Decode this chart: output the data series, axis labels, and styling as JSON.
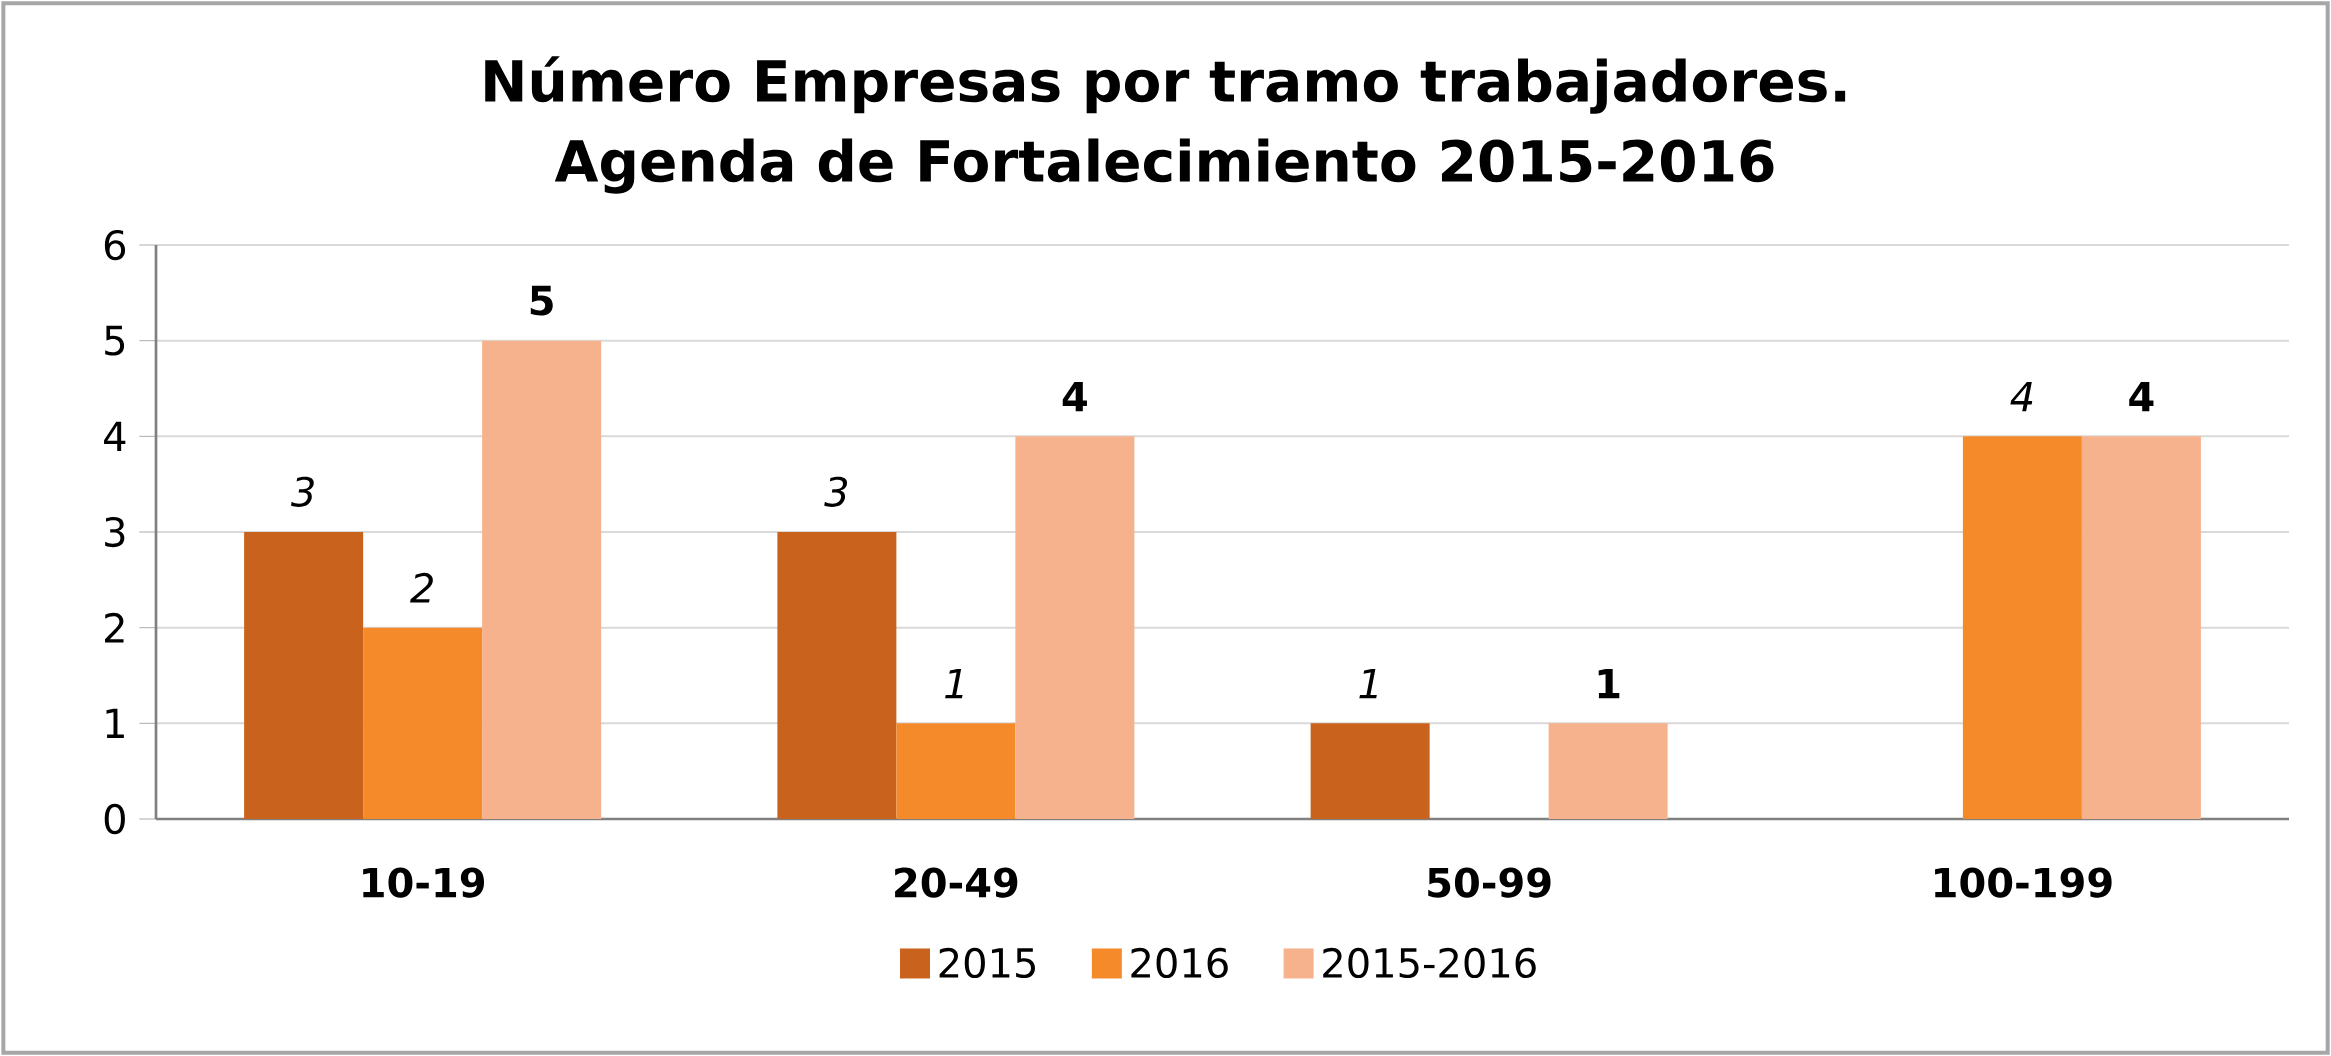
{
  "chart_data": {
    "type": "bar",
    "title": "Número Empresas por tramo trabajadores.\nAgenda de Fortalecimiento 2015-2016",
    "categories": [
      "10-19",
      "20-49",
      "50-99",
      "100-199"
    ],
    "series": [
      {
        "name": "2015",
        "color": "#c8621c",
        "values": [
          3,
          3,
          1,
          null
        ]
      },
      {
        "name": "2016",
        "color": "#f58a2a",
        "values": [
          2,
          1,
          null,
          4
        ]
      },
      {
        "name": "2015-2016",
        "color": "#f6b28c",
        "values": [
          5,
          4,
          1,
          4
        ]
      }
    ],
    "ylim": [
      0,
      6
    ],
    "yticks": [
      0,
      1,
      2,
      3,
      4,
      5,
      6
    ],
    "grid": "y",
    "legend": "bottom",
    "data_labels": true
  }
}
